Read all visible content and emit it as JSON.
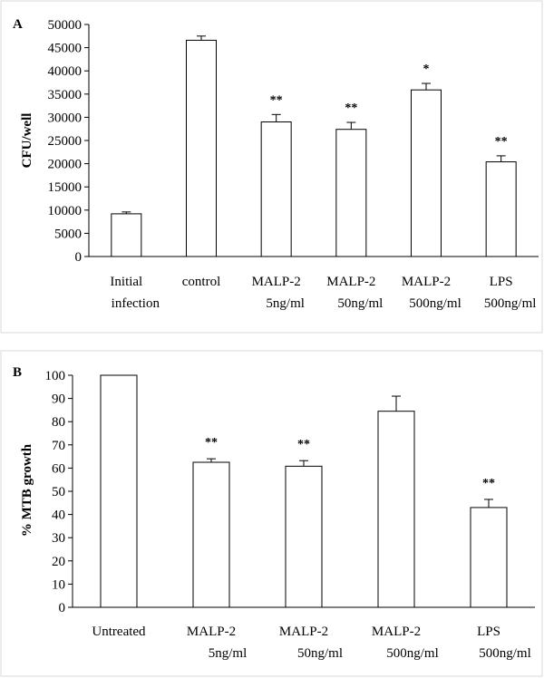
{
  "chart_data": [
    {
      "type": "bar",
      "panel": "A",
      "ylabel": "CFU/well",
      "ylim": [
        0,
        50000
      ],
      "yticks": [
        0,
        5000,
        10000,
        15000,
        20000,
        25000,
        30000,
        35000,
        40000,
        45000,
        50000
      ],
      "categories": [
        [
          "Initial",
          "infection"
        ],
        [
          "control",
          ""
        ],
        [
          "MALP-2",
          "5ng/ml"
        ],
        [
          "MALP-2",
          "50ng/ml"
        ],
        [
          "MALP-2",
          "500ng/ml"
        ],
        [
          "LPS",
          "500ng/ml"
        ]
      ],
      "values": [
        9200,
        46600,
        29000,
        27400,
        35900,
        20400
      ],
      "errors": [
        400,
        900,
        1600,
        1500,
        1400,
        1300
      ],
      "significance": [
        "",
        "",
        "**",
        "**",
        "*",
        "**"
      ],
      "grid": false
    },
    {
      "type": "bar",
      "panel": "B",
      "ylabel": "% MTB growth",
      "ylim": [
        0,
        100
      ],
      "yticks": [
        0,
        10,
        20,
        30,
        40,
        50,
        60,
        70,
        80,
        90,
        100
      ],
      "categories": [
        [
          "Untreated",
          ""
        ],
        [
          "MALP-2",
          "5ng/ml"
        ],
        [
          "MALP-2",
          "50ng/ml"
        ],
        [
          "MALP-2",
          "500ng/ml"
        ],
        [
          "LPS",
          "500ng/ml"
        ]
      ],
      "values": [
        100,
        62.5,
        60.8,
        84.5,
        43.0
      ],
      "errors": [
        0,
        1.5,
        2.4,
        6.5,
        3.5
      ],
      "significance": [
        "",
        "**",
        "**",
        "",
        "**"
      ],
      "grid": false
    }
  ]
}
